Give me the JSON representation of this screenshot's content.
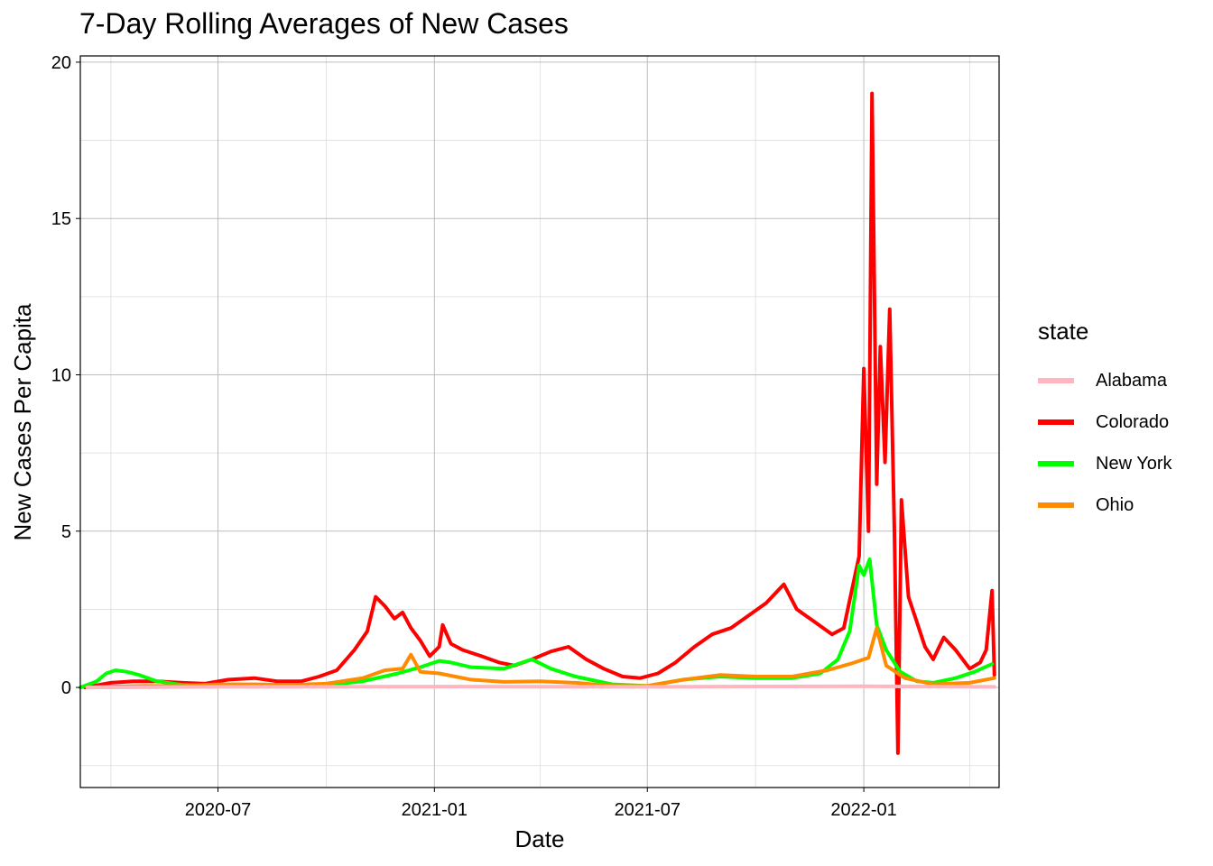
{
  "chart_data": {
    "type": "line",
    "title": "7-Day Rolling Averages of New Cases",
    "xlabel": "Date",
    "ylabel": "New Cases Per Capita",
    "xlim": [
      "2020-03-06",
      "2022-04-26"
    ],
    "ylim": [
      -3.2,
      20.2
    ],
    "x_ticks": [
      "2020-07-01",
      "2021-01-01",
      "2021-07-01",
      "2022-01-01"
    ],
    "x_tick_labels": [
      "2020-07",
      "2021-01",
      "2021-07",
      "2022-01"
    ],
    "y_ticks": [
      0,
      5,
      10,
      15,
      20
    ],
    "y_minor_ticks": [
      -2.5,
      2.5,
      7.5,
      12.5,
      17.5
    ],
    "x_minor_ticks": [
      "2020-04-01",
      "2020-10-01",
      "2021-04-01",
      "2021-10-01",
      "2022-04-01"
    ],
    "grid": true,
    "legend": {
      "title": "state",
      "position": "right",
      "entries": [
        {
          "name": "Alabama",
          "color": "#FFB6C1"
        },
        {
          "name": "Colorado",
          "color": "#FF0000"
        },
        {
          "name": "New York",
          "color": "#00FF00"
        },
        {
          "name": "Ohio",
          "color": "#FF8C00"
        }
      ]
    },
    "series": [
      {
        "name": "Colorado",
        "color": "#FF0000",
        "points": [
          [
            "2020-03-10",
            0.0
          ],
          [
            "2020-04-01",
            0.15
          ],
          [
            "2020-04-20",
            0.2
          ],
          [
            "2020-05-10",
            0.2
          ],
          [
            "2020-06-01",
            0.15
          ],
          [
            "2020-06-20",
            0.12
          ],
          [
            "2020-07-10",
            0.25
          ],
          [
            "2020-08-01",
            0.3
          ],
          [
            "2020-08-20",
            0.2
          ],
          [
            "2020-09-10",
            0.2
          ],
          [
            "2020-09-25",
            0.35
          ],
          [
            "2020-10-10",
            0.55
          ],
          [
            "2020-10-25",
            1.2
          ],
          [
            "2020-11-05",
            1.8
          ],
          [
            "2020-11-12",
            2.9
          ],
          [
            "2020-11-20",
            2.6
          ],
          [
            "2020-11-28",
            2.2
          ],
          [
            "2020-12-05",
            2.4
          ],
          [
            "2020-12-12",
            1.9
          ],
          [
            "2020-12-20",
            1.5
          ],
          [
            "2020-12-28",
            1.0
          ],
          [
            "2021-01-05",
            1.3
          ],
          [
            "2021-01-08",
            2.0
          ],
          [
            "2021-01-15",
            1.4
          ],
          [
            "2021-01-25",
            1.2
          ],
          [
            "2021-02-10",
            1.0
          ],
          [
            "2021-02-25",
            0.8
          ],
          [
            "2021-03-10",
            0.7
          ],
          [
            "2021-03-25",
            0.9
          ],
          [
            "2021-04-10",
            1.15
          ],
          [
            "2021-04-25",
            1.3
          ],
          [
            "2021-05-10",
            0.9
          ],
          [
            "2021-05-25",
            0.6
          ],
          [
            "2021-06-10",
            0.35
          ],
          [
            "2021-06-25",
            0.3
          ],
          [
            "2021-07-10",
            0.45
          ],
          [
            "2021-07-25",
            0.8
          ],
          [
            "2021-08-10",
            1.3
          ],
          [
            "2021-08-25",
            1.7
          ],
          [
            "2021-09-10",
            1.9
          ],
          [
            "2021-09-25",
            2.3
          ],
          [
            "2021-10-10",
            2.7
          ],
          [
            "2021-10-25",
            3.3
          ],
          [
            "2021-11-05",
            2.5
          ],
          [
            "2021-11-20",
            2.1
          ],
          [
            "2021-12-05",
            1.7
          ],
          [
            "2021-12-15",
            1.9
          ],
          [
            "2021-12-28",
            4.2
          ],
          [
            "2022-01-01",
            10.2
          ],
          [
            "2022-01-05",
            5.0
          ],
          [
            "2022-01-08",
            19.0
          ],
          [
            "2022-01-12",
            6.5
          ],
          [
            "2022-01-15",
            10.9
          ],
          [
            "2022-01-19",
            7.2
          ],
          [
            "2022-01-23",
            12.1
          ],
          [
            "2022-01-27",
            5.0
          ],
          [
            "2022-01-30",
            -2.1
          ],
          [
            "2022-02-02",
            6.0
          ],
          [
            "2022-02-08",
            2.9
          ],
          [
            "2022-02-15",
            2.1
          ],
          [
            "2022-02-22",
            1.3
          ],
          [
            "2022-03-01",
            0.9
          ],
          [
            "2022-03-10",
            1.6
          ],
          [
            "2022-03-20",
            1.2
          ],
          [
            "2022-04-01",
            0.6
          ],
          [
            "2022-04-10",
            0.8
          ],
          [
            "2022-04-15",
            1.2
          ],
          [
            "2022-04-20",
            3.1
          ],
          [
            "2022-04-22",
            0.4
          ]
        ]
      },
      {
        "name": "New York",
        "color": "#00FF00",
        "points": [
          [
            "2020-03-06",
            0.0
          ],
          [
            "2020-03-20",
            0.2
          ],
          [
            "2020-03-28",
            0.45
          ],
          [
            "2020-04-05",
            0.55
          ],
          [
            "2020-04-15",
            0.5
          ],
          [
            "2020-04-25",
            0.4
          ],
          [
            "2020-05-10",
            0.2
          ],
          [
            "2020-06-01",
            0.08
          ],
          [
            "2020-07-01",
            0.05
          ],
          [
            "2020-08-01",
            0.04
          ],
          [
            "2020-09-01",
            0.04
          ],
          [
            "2020-10-01",
            0.08
          ],
          [
            "2020-11-01",
            0.2
          ],
          [
            "2020-12-01",
            0.45
          ],
          [
            "2020-12-20",
            0.65
          ],
          [
            "2021-01-05",
            0.85
          ],
          [
            "2021-01-15",
            0.8
          ],
          [
            "2021-02-01",
            0.65
          ],
          [
            "2021-03-01",
            0.6
          ],
          [
            "2021-03-25",
            0.9
          ],
          [
            "2021-04-10",
            0.6
          ],
          [
            "2021-05-01",
            0.35
          ],
          [
            "2021-06-01",
            0.1
          ],
          [
            "2021-07-01",
            0.05
          ],
          [
            "2021-08-01",
            0.25
          ],
          [
            "2021-09-01",
            0.35
          ],
          [
            "2021-10-01",
            0.3
          ],
          [
            "2021-11-01",
            0.3
          ],
          [
            "2021-11-25",
            0.45
          ],
          [
            "2021-12-10",
            0.9
          ],
          [
            "2021-12-20",
            1.8
          ],
          [
            "2021-12-28",
            3.9
          ],
          [
            "2022-01-01",
            3.6
          ],
          [
            "2022-01-06",
            4.1
          ],
          [
            "2022-01-12",
            2.0
          ],
          [
            "2022-01-20",
            1.2
          ],
          [
            "2022-02-01",
            0.5
          ],
          [
            "2022-02-15",
            0.2
          ],
          [
            "2022-03-01",
            0.15
          ],
          [
            "2022-03-20",
            0.3
          ],
          [
            "2022-04-05",
            0.5
          ],
          [
            "2022-04-20",
            0.75
          ]
        ]
      },
      {
        "name": "Ohio",
        "color": "#FF8C00",
        "points": [
          [
            "2020-03-12",
            0.0
          ],
          [
            "2020-04-01",
            0.03
          ],
          [
            "2020-05-01",
            0.05
          ],
          [
            "2020-06-01",
            0.05
          ],
          [
            "2020-07-01",
            0.1
          ],
          [
            "2020-08-01",
            0.1
          ],
          [
            "2020-09-01",
            0.08
          ],
          [
            "2020-10-01",
            0.12
          ],
          [
            "2020-11-01",
            0.3
          ],
          [
            "2020-11-20",
            0.55
          ],
          [
            "2020-12-05",
            0.6
          ],
          [
            "2020-12-12",
            1.05
          ],
          [
            "2020-12-20",
            0.5
          ],
          [
            "2021-01-05",
            0.45
          ],
          [
            "2021-02-01",
            0.25
          ],
          [
            "2021-03-01",
            0.18
          ],
          [
            "2021-04-01",
            0.2
          ],
          [
            "2021-05-01",
            0.15
          ],
          [
            "2021-06-01",
            0.05
          ],
          [
            "2021-07-01",
            0.05
          ],
          [
            "2021-08-01",
            0.25
          ],
          [
            "2021-09-01",
            0.4
          ],
          [
            "2021-10-01",
            0.35
          ],
          [
            "2021-11-01",
            0.35
          ],
          [
            "2021-12-01",
            0.55
          ],
          [
            "2021-12-20",
            0.75
          ],
          [
            "2022-01-05",
            0.95
          ],
          [
            "2022-01-12",
            1.9
          ],
          [
            "2022-01-20",
            0.7
          ],
          [
            "2022-02-05",
            0.3
          ],
          [
            "2022-03-01",
            0.1
          ],
          [
            "2022-04-01",
            0.15
          ],
          [
            "2022-04-22",
            0.3
          ]
        ]
      },
      {
        "name": "Alabama",
        "color": "#FFB6C1",
        "points": [
          [
            "2020-03-12",
            0.0
          ],
          [
            "2020-07-01",
            0.02
          ],
          [
            "2021-01-01",
            0.03
          ],
          [
            "2021-07-01",
            0.02
          ],
          [
            "2022-01-01",
            0.04
          ],
          [
            "2022-04-22",
            0.02
          ]
        ]
      }
    ]
  }
}
